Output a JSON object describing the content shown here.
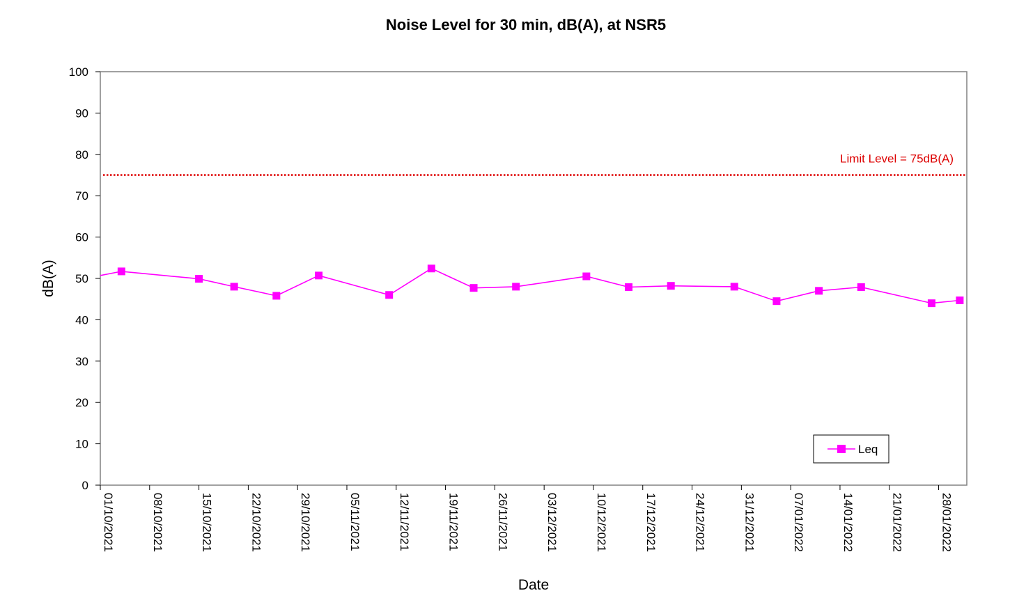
{
  "chart_data": {
    "type": "line",
    "title": "Noise Level for 30 min, dB(A), at NSR5",
    "xlabel": "Date",
    "ylabel": "dB(A)",
    "ylim": [
      0,
      100
    ],
    "yticks": [
      0,
      10,
      20,
      30,
      40,
      50,
      60,
      70,
      80,
      90,
      100
    ],
    "xlim": [
      "2021-10-01",
      "2022-02-01"
    ],
    "xtick_labels": [
      "01/10/2021",
      "08/10/2021",
      "15/10/2021",
      "22/10/2021",
      "29/10/2021",
      "05/11/2021",
      "12/11/2021",
      "19/11/2021",
      "26/11/2021",
      "03/12/2021",
      "10/12/2021",
      "17/12/2021",
      "24/12/2021",
      "31/12/2021",
      "07/01/2022",
      "14/01/2022",
      "21/01/2022",
      "28/01/2022"
    ],
    "xtick_dates": [
      "2021-10-01",
      "2021-10-08",
      "2021-10-15",
      "2021-10-22",
      "2021-10-29",
      "2021-11-05",
      "2021-11-12",
      "2021-11-19",
      "2021-11-26",
      "2021-12-03",
      "2021-12-10",
      "2021-12-17",
      "2021-12-24",
      "2021-12-31",
      "2022-01-07",
      "2022-01-14",
      "2022-01-21",
      "2022-01-28"
    ],
    "grid": false,
    "legend_position": "bottom-right",
    "series": [
      {
        "name": "Leq",
        "color": "#ff00ff",
        "marker": "square",
        "x": [
          "2021-10-01",
          "2021-10-04",
          "2021-10-15",
          "2021-10-20",
          "2021-10-26",
          "2021-11-01",
          "2021-11-11",
          "2021-11-17",
          "2021-11-23",
          "2021-11-29",
          "2021-12-09",
          "2021-12-15",
          "2021-12-21",
          "2021-12-30",
          "2022-01-05",
          "2022-01-11",
          "2022-01-17",
          "2022-01-27",
          "2022-01-31"
        ],
        "y": [
          50.7,
          51.7,
          49.9,
          48.0,
          45.8,
          50.7,
          46.0,
          52.4,
          47.7,
          48.0,
          50.5,
          47.9,
          48.2,
          48.0,
          44.5,
          47.0,
          47.9,
          44.0,
          44.7
        ]
      }
    ],
    "reference_line": {
      "value": 75,
      "label": "Limit Level = 75dB(A)",
      "color": "#dd0000",
      "style": "dotted"
    }
  }
}
